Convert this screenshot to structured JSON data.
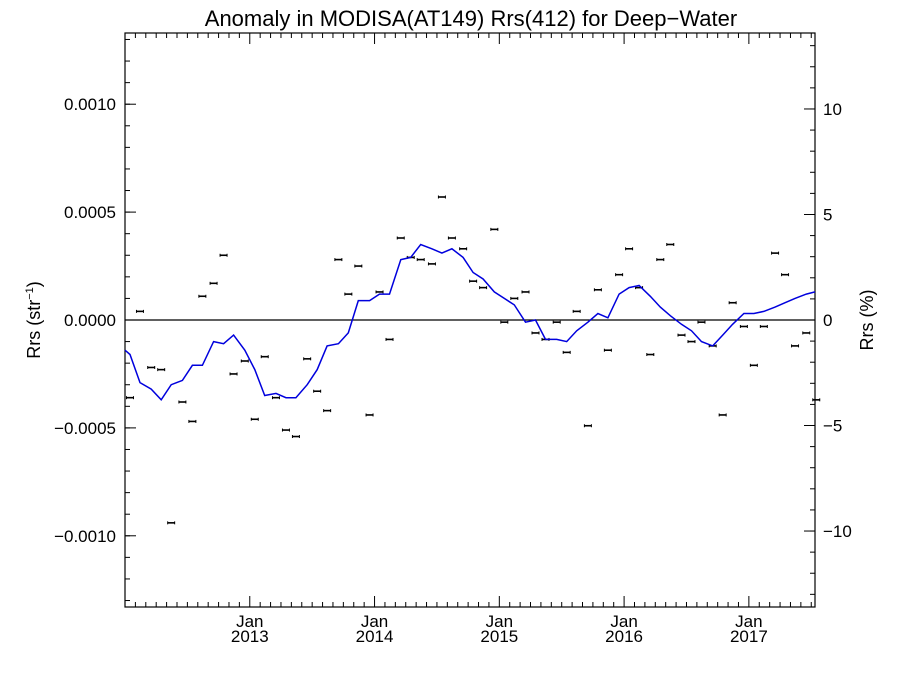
{
  "chart_data": {
    "type": "scatter",
    "title": "Anomaly in MODISA(AT149) Rrs(412) for Deep−Water",
    "ylabel_left": "Rrs (str",
    "ylabel_left_sup": "−1",
    "ylabel_left_tail": ")",
    "ylabel_right": "Rrs (%)",
    "ylim": [
      -0.00133,
      0.00133
    ],
    "ylim_right": [
      -13.6,
      13.6
    ],
    "xlim": [
      2012.0,
      2017.53
    ],
    "grid": false,
    "left_ticks": [
      {
        "value": 0.001,
        "label": "0.0010"
      },
      {
        "value": 0.0005,
        "label": "0.0005"
      },
      {
        "value": 0.0,
        "label": "0.0000"
      },
      {
        "value": -0.0005,
        "label": "−0.0005"
      },
      {
        "value": -0.001,
        "label": "−0.0010"
      }
    ],
    "right_ticks": [
      {
        "value": 10,
        "label": "10"
      },
      {
        "value": 5,
        "label": "5"
      },
      {
        "value": 0,
        "label": "0"
      },
      {
        "value": -5,
        "label": "−5"
      },
      {
        "value": -10,
        "label": "−10"
      }
    ],
    "x_ticks": [
      {
        "value": 2013.0,
        "month": "Jan",
        "year": "2013"
      },
      {
        "value": 2014.0,
        "month": "Jan",
        "year": "2014"
      },
      {
        "value": 2015.0,
        "month": "Jan",
        "year": "2015"
      },
      {
        "value": 2016.0,
        "month": "Jan",
        "year": "2016"
      },
      {
        "value": 2017.0,
        "month": "Jan",
        "year": "2017"
      }
    ],
    "series": [
      {
        "kind": "points",
        "color": "#000000",
        "x": [
          2012.04,
          2012.12,
          2012.21,
          2012.29,
          2012.37,
          2012.46,
          2012.54,
          2012.62,
          2012.71,
          2012.79,
          2012.87,
          2012.96,
          2013.04,
          2013.12,
          2013.21,
          2013.29,
          2013.37,
          2013.46,
          2013.54,
          2013.62,
          2013.71,
          2013.79,
          2013.87,
          2013.96,
          2014.04,
          2014.12,
          2014.21,
          2014.29,
          2014.37,
          2014.46,
          2014.54,
          2014.62,
          2014.71,
          2014.79,
          2014.87,
          2014.96,
          2015.04,
          2015.12,
          2015.21,
          2015.29,
          2015.37,
          2015.46,
          2015.54,
          2015.62,
          2015.71,
          2015.79,
          2015.87,
          2015.96,
          2016.04,
          2016.12,
          2016.21,
          2016.29,
          2016.37,
          2016.46,
          2016.54,
          2016.62,
          2016.71,
          2016.79,
          2016.87,
          2016.96,
          2017.04,
          2017.12,
          2017.21,
          2017.29,
          2017.37,
          2017.46,
          2017.54
        ],
        "y": [
          -0.00036,
          4e-05,
          -0.00022,
          -0.00023,
          -0.00094,
          -0.00038,
          -0.00047,
          0.00011,
          0.00017,
          0.0003,
          -0.00025,
          -0.00019,
          -0.00046,
          -0.00017,
          -0.00036,
          -0.00051,
          -0.00054,
          -0.00018,
          -0.00033,
          -0.00042,
          0.00028,
          0.00012,
          0.00025,
          -0.00044,
          0.00013,
          -9e-05,
          0.00038,
          0.00029,
          0.00028,
          0.00026,
          0.00057,
          0.00038,
          0.00033,
          0.00018,
          0.00015,
          0.00042,
          -1e-05,
          0.0001,
          0.00013,
          -6e-05,
          -9e-05,
          -1e-05,
          -0.00015,
          4e-05,
          -0.00049,
          0.00014,
          -0.00014,
          0.00021,
          0.00033,
          0.00015,
          -0.00016,
          0.00028,
          0.00035,
          -7e-05,
          -0.0001,
          -1e-05,
          -0.00012,
          -0.00044,
          8e-05,
          -3e-05,
          -0.00021,
          -3e-05,
          0.00031,
          0.00021,
          -0.00012,
          -6e-05,
          -0.00037
        ]
      },
      {
        "kind": "line",
        "color": "#0000dd",
        "x": [
          2012.0,
          2012.04,
          2012.12,
          2012.21,
          2012.29,
          2012.37,
          2012.46,
          2012.54,
          2012.62,
          2012.71,
          2012.79,
          2012.87,
          2012.96,
          2013.04,
          2013.12,
          2013.21,
          2013.29,
          2013.37,
          2013.46,
          2013.54,
          2013.62,
          2013.71,
          2013.79,
          2013.87,
          2013.96,
          2014.04,
          2014.12,
          2014.21,
          2014.29,
          2014.37,
          2014.46,
          2014.54,
          2014.62,
          2014.71,
          2014.79,
          2014.87,
          2014.96,
          2015.04,
          2015.12,
          2015.21,
          2015.29,
          2015.37,
          2015.46,
          2015.54,
          2015.62,
          2015.71,
          2015.79,
          2015.87,
          2015.96,
          2016.04,
          2016.12,
          2016.21,
          2016.29,
          2016.37,
          2016.46,
          2016.54,
          2016.62,
          2016.71,
          2016.79,
          2016.87,
          2016.96,
          2017.04,
          2017.12,
          2017.21,
          2017.29,
          2017.37,
          2017.46,
          2017.53
        ],
        "y": [
          -0.00014,
          -0.00016,
          -0.00029,
          -0.00032,
          -0.00037,
          -0.0003,
          -0.00028,
          -0.00021,
          -0.00021,
          -0.0001,
          -0.00011,
          -7e-05,
          -0.00014,
          -0.00023,
          -0.00035,
          -0.00034,
          -0.00036,
          -0.00036,
          -0.0003,
          -0.00023,
          -0.00012,
          -0.00011,
          -6e-05,
          9e-05,
          9e-05,
          0.00012,
          0.00012,
          0.00028,
          0.00029,
          0.00035,
          0.00033,
          0.00031,
          0.00033,
          0.00029,
          0.00022,
          0.00019,
          0.00013,
          0.0001,
          7e-05,
          -1e-05,
          0.0,
          -9e-05,
          -9e-05,
          -0.0001,
          -5e-05,
          -1e-05,
          3e-05,
          1e-05,
          0.00012,
          0.00015,
          0.00016,
          0.00011,
          6e-05,
          2e-05,
          -2e-05,
          -5e-05,
          -0.0001,
          -0.00012,
          -7e-05,
          -2e-05,
          3e-05,
          3e-05,
          4e-05,
          6e-05,
          8e-05,
          0.0001,
          0.00012,
          0.00013
        ]
      }
    ]
  }
}
